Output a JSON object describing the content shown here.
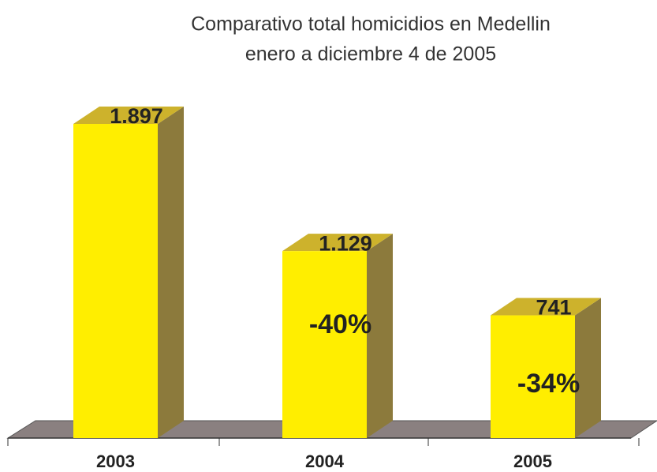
{
  "chart_data": {
    "type": "bar3d",
    "title": "Comparativo total homicidios en Medellin",
    "subtitle": "enero a diciembre 4 de 2005",
    "categories": [
      "2003",
      "2004",
      "2005"
    ],
    "values": [
      1897,
      1129,
      741
    ],
    "value_labels": [
      "1.897",
      "1.129",
      "741"
    ],
    "change_labels": [
      null,
      "-40%",
      "-34%"
    ],
    "color": "#ffee00"
  }
}
